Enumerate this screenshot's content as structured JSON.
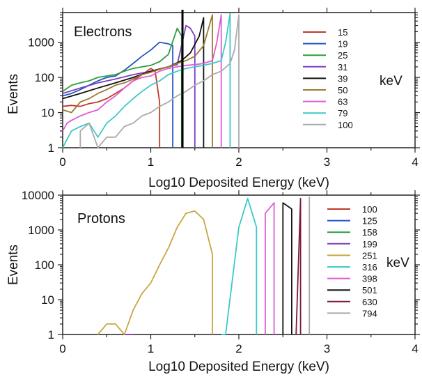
{
  "chart_data": [
    {
      "type": "line",
      "title": "Electrons",
      "xlabel": "Log10 Deposited Energy (keV)",
      "ylabel": "Events",
      "xlim": [
        0,
        4
      ],
      "ylim": [
        1,
        7000
      ],
      "yscale": "log",
      "xticks": [
        "0",
        "1",
        "2",
        "3",
        "4"
      ],
      "yticks": [
        {
          "v": 1,
          "label": "1"
        },
        {
          "v": 10,
          "label": "10"
        },
        {
          "v": 100,
          "label": "100"
        },
        {
          "v": 1000,
          "label": "1000"
        }
      ],
      "legend_unit": "keV",
      "legend_position": "right",
      "marker_line_x": 1.36,
      "series": [
        {
          "name": "15",
          "color": "#c0392b",
          "points": [
            [
              0,
              15
            ],
            [
              0.1,
              16
            ],
            [
              0.2,
              15
            ],
            [
              0.3,
              18
            ],
            [
              0.4,
              20
            ],
            [
              0.5,
              25
            ],
            [
              0.6,
              35
            ],
            [
              0.7,
              50
            ],
            [
              0.8,
              80
            ],
            [
              0.9,
              120
            ],
            [
              1.0,
              180
            ],
            [
              1.05,
              150
            ],
            [
              1.1,
              20
            ],
            [
              1.1,
              1
            ]
          ]
        },
        {
          "name": "19",
          "color": "#2255c4",
          "points": [
            [
              0,
              30
            ],
            [
              0.1,
              35
            ],
            [
              0.2,
              45
            ],
            [
              0.3,
              60
            ],
            [
              0.4,
              80
            ],
            [
              0.5,
              100
            ],
            [
              0.6,
              110
            ],
            [
              0.7,
              160
            ],
            [
              0.8,
              250
            ],
            [
              0.9,
              400
            ],
            [
              1.0,
              600
            ],
            [
              1.1,
              1000
            ],
            [
              1.2,
              900
            ],
            [
              1.25,
              800
            ],
            [
              1.25,
              1
            ]
          ]
        },
        {
          "name": "25",
          "color": "#2e9e3a",
          "points": [
            [
              0,
              40
            ],
            [
              0.1,
              60
            ],
            [
              0.2,
              70
            ],
            [
              0.3,
              80
            ],
            [
              0.4,
              100
            ],
            [
              0.5,
              110
            ],
            [
              0.6,
              120
            ],
            [
              0.7,
              150
            ],
            [
              0.8,
              180
            ],
            [
              0.9,
              200
            ],
            [
              1.0,
              220
            ],
            [
              1.1,
              280
            ],
            [
              1.2,
              450
            ],
            [
              1.3,
              2500
            ],
            [
              1.35,
              1500
            ],
            [
              1.35,
              1
            ]
          ]
        },
        {
          "name": "31",
          "color": "#7b3fc4",
          "points": [
            [
              0,
              35
            ],
            [
              0.2,
              50
            ],
            [
              0.4,
              70
            ],
            [
              0.6,
              90
            ],
            [
              0.8,
              120
            ],
            [
              1.0,
              150
            ],
            [
              1.2,
              200
            ],
            [
              1.3,
              230
            ],
            [
              1.4,
              3000
            ],
            [
              1.45,
              2500
            ],
            [
              1.5,
              1500
            ],
            [
              1.5,
              1
            ]
          ]
        },
        {
          "name": "39",
          "color": "#111111",
          "points": [
            [
              0,
              25
            ],
            [
              0.2,
              35
            ],
            [
              0.4,
              50
            ],
            [
              0.6,
              70
            ],
            [
              0.8,
              100
            ],
            [
              1.0,
              150
            ],
            [
              1.2,
              200
            ],
            [
              1.35,
              300
            ],
            [
              1.45,
              500
            ],
            [
              1.55,
              1500
            ],
            [
              1.6,
              5000
            ],
            [
              1.6,
              1
            ]
          ]
        },
        {
          "name": "50",
          "color": "#9a7a2c",
          "points": [
            [
              0,
              12
            ],
            [
              0.1,
              10
            ],
            [
              0.2,
              20
            ],
            [
              0.3,
              25
            ],
            [
              0.4,
              35
            ],
            [
              0.5,
              45
            ],
            [
              0.6,
              60
            ],
            [
              0.7,
              70
            ],
            [
              0.8,
              90
            ],
            [
              0.9,
              120
            ],
            [
              1.0,
              140
            ],
            [
              1.1,
              170
            ],
            [
              1.2,
              200
            ],
            [
              1.3,
              250
            ],
            [
              1.4,
              300
            ],
            [
              1.5,
              400
            ],
            [
              1.6,
              800
            ],
            [
              1.7,
              6000
            ],
            [
              1.7,
              1
            ]
          ]
        },
        {
          "name": "63",
          "color": "#e05bd4",
          "points": [
            [
              0,
              3
            ],
            [
              0.05,
              5
            ],
            [
              0.1,
              6
            ],
            [
              0.2,
              8
            ],
            [
              0.3,
              10
            ],
            [
              0.4,
              12
            ],
            [
              0.5,
              20
            ],
            [
              0.6,
              30
            ],
            [
              0.7,
              50
            ],
            [
              0.8,
              80
            ],
            [
              0.9,
              100
            ],
            [
              1.0,
              110
            ],
            [
              1.1,
              150
            ],
            [
              1.2,
              180
            ],
            [
              1.3,
              200
            ],
            [
              1.4,
              220
            ],
            [
              1.5,
              230
            ],
            [
              1.6,
              250
            ],
            [
              1.7,
              300
            ],
            [
              1.75,
              1000
            ],
            [
              1.8,
              6000
            ],
            [
              1.8,
              1
            ]
          ]
        },
        {
          "name": "79",
          "color": "#3cc9c9",
          "points": [
            [
              0,
              1
            ],
            [
              0.1,
              3
            ],
            [
              0.2,
              4
            ],
            [
              0.3,
              5
            ],
            [
              0.4,
              2
            ],
            [
              0.5,
              5
            ],
            [
              0.6,
              8
            ],
            [
              0.7,
              15
            ],
            [
              0.8,
              25
            ],
            [
              0.9,
              40
            ],
            [
              1.0,
              60
            ],
            [
              1.1,
              80
            ],
            [
              1.2,
              120
            ],
            [
              1.3,
              150
            ],
            [
              1.4,
              180
            ],
            [
              1.5,
              200
            ],
            [
              1.6,
              220
            ],
            [
              1.7,
              250
            ],
            [
              1.8,
              300
            ],
            [
              1.85,
              1000
            ],
            [
              1.9,
              6500
            ],
            [
              1.9,
              1
            ]
          ]
        },
        {
          "name": "100",
          "color": "#aaaaaa",
          "points": [
            [
              0.2,
              1
            ],
            [
              0.2,
              3
            ],
            [
              0.3,
              5
            ],
            [
              0.4,
              1
            ],
            [
              0.5,
              2
            ],
            [
              0.6,
              2
            ],
            [
              0.7,
              4
            ],
            [
              0.8,
              5
            ],
            [
              0.9,
              8
            ],
            [
              1.0,
              10
            ],
            [
              1.1,
              15
            ],
            [
              1.2,
              20
            ],
            [
              1.3,
              30
            ],
            [
              1.4,
              40
            ],
            [
              1.5,
              60
            ],
            [
              1.6,
              80
            ],
            [
              1.7,
              120
            ],
            [
              1.8,
              150
            ],
            [
              1.9,
              250
            ],
            [
              1.95,
              600
            ],
            [
              2.0,
              6000
            ],
            [
              2.0,
              1
            ]
          ]
        }
      ]
    },
    {
      "type": "line",
      "title": "Protons",
      "xlabel": "Log10 Deposited Energy (keV)",
      "ylabel": "Events",
      "xlim": [
        0,
        4
      ],
      "ylim": [
        1,
        10000
      ],
      "yscale": "log",
      "xticks": [
        "0",
        "1",
        "2",
        "3",
        "4"
      ],
      "yticks": [
        {
          "v": 1,
          "label": "1"
        },
        {
          "v": 10,
          "label": "10"
        },
        {
          "v": 100,
          "label": "100"
        },
        {
          "v": 1000,
          "label": "1000"
        },
        {
          "v": 10000,
          "label": "10000"
        }
      ],
      "legend_unit": "keV",
      "legend_position": "right",
      "series": [
        {
          "name": "100",
          "color": "#c0392b",
          "points": []
        },
        {
          "name": "125",
          "color": "#2255c4",
          "points": []
        },
        {
          "name": "158",
          "color": "#2e9e3a",
          "points": []
        },
        {
          "name": "199",
          "color": "#7b3fc4",
          "points": [
            [
              0.7,
              1
            ],
            [
              0.8,
              1
            ]
          ]
        },
        {
          "name": "251",
          "color": "#c9a640",
          "points": [
            [
              0.4,
              1
            ],
            [
              0.5,
              2
            ],
            [
              0.6,
              2
            ],
            [
              0.7,
              1
            ],
            [
              0.8,
              5
            ],
            [
              0.9,
              15
            ],
            [
              1.0,
              30
            ],
            [
              1.1,
              100
            ],
            [
              1.2,
              300
            ],
            [
              1.3,
              1200
            ],
            [
              1.4,
              3000
            ],
            [
              1.5,
              3500
            ],
            [
              1.6,
              2000
            ],
            [
              1.7,
              200
            ],
            [
              1.7,
              1
            ]
          ]
        },
        {
          "name": "316",
          "color": "#3cc9c9",
          "points": [
            [
              1.8,
              1
            ],
            [
              1.85,
              1
            ],
            [
              2.0,
              1200
            ],
            [
              2.1,
              8000
            ],
            [
              2.2,
              1200
            ],
            [
              2.2,
              1
            ]
          ]
        },
        {
          "name": "398",
          "color": "#e05bd4",
          "points": [
            [
              2.3,
              1
            ],
            [
              2.3,
              3000
            ],
            [
              2.4,
              6000
            ],
            [
              2.4,
              1
            ]
          ]
        },
        {
          "name": "501",
          "color": "#111111",
          "points": [
            [
              2.5,
              1
            ],
            [
              2.5,
              6000
            ],
            [
              2.6,
              4000
            ],
            [
              2.6,
              1
            ]
          ]
        },
        {
          "name": "630",
          "color": "#7a1a3a",
          "points": [
            [
              2.65,
              1
            ],
            [
              2.7,
              8000
            ],
            [
              2.7,
              1
            ]
          ]
        },
        {
          "name": "794",
          "color": "#aaaaaa",
          "points": [
            [
              2.8,
              1
            ],
            [
              2.8,
              9000
            ]
          ]
        }
      ]
    }
  ]
}
